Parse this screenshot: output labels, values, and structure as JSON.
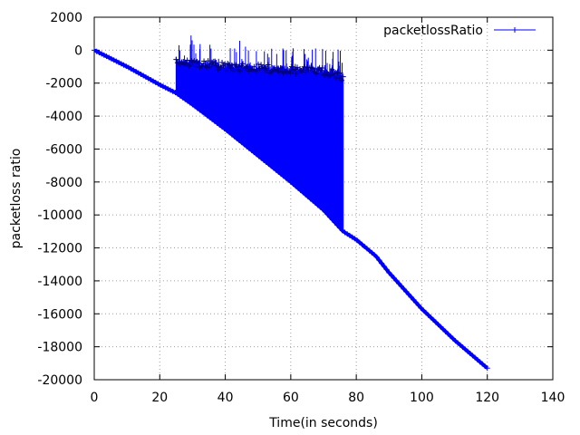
{
  "chart_data": {
    "type": "line",
    "xlabel": "Time(in seconds)",
    "ylabel": "packetloss ratio",
    "xlim": [
      0,
      140
    ],
    "ylim": [
      -20000,
      2000
    ],
    "xticks": [
      0,
      20,
      40,
      60,
      80,
      100,
      120,
      140
    ],
    "yticks": [
      -20000,
      -18000,
      -16000,
      -14000,
      -12000,
      -10000,
      -8000,
      -6000,
      -4000,
      -2000,
      0,
      2000
    ],
    "grid": true,
    "legend_position": "top-right",
    "line_color": "#0000ff",
    "series": [
      {
        "name": "packetlossRatio",
        "marker": "plus",
        "baseline": {
          "x": [
            0,
            5,
            10,
            15,
            20,
            25,
            30,
            40,
            50,
            60,
            70,
            76,
            80,
            86,
            90,
            100,
            110,
            120
          ],
          "y": [
            0,
            -500,
            -1000,
            -1550,
            -2100,
            -2600,
            -3300,
            -4800,
            -6400,
            -8000,
            -9700,
            -11000,
            -11500,
            -12500,
            -13500,
            -15700,
            -17600,
            -19300
          ]
        },
        "spike_region": {
          "x_start": 25,
          "x_end": 76,
          "upper_envelope": {
            "x": [
              25,
              27,
              30,
              35,
              40,
              45,
              50,
              55,
              60,
              65,
              70,
              73,
              76
            ],
            "y": [
              -400,
              -500,
              -550,
              -650,
              -750,
              -800,
              -850,
              -900,
              -950,
              -1000,
              -1050,
              -1100,
              -1400
            ]
          }
        }
      }
    ]
  }
}
